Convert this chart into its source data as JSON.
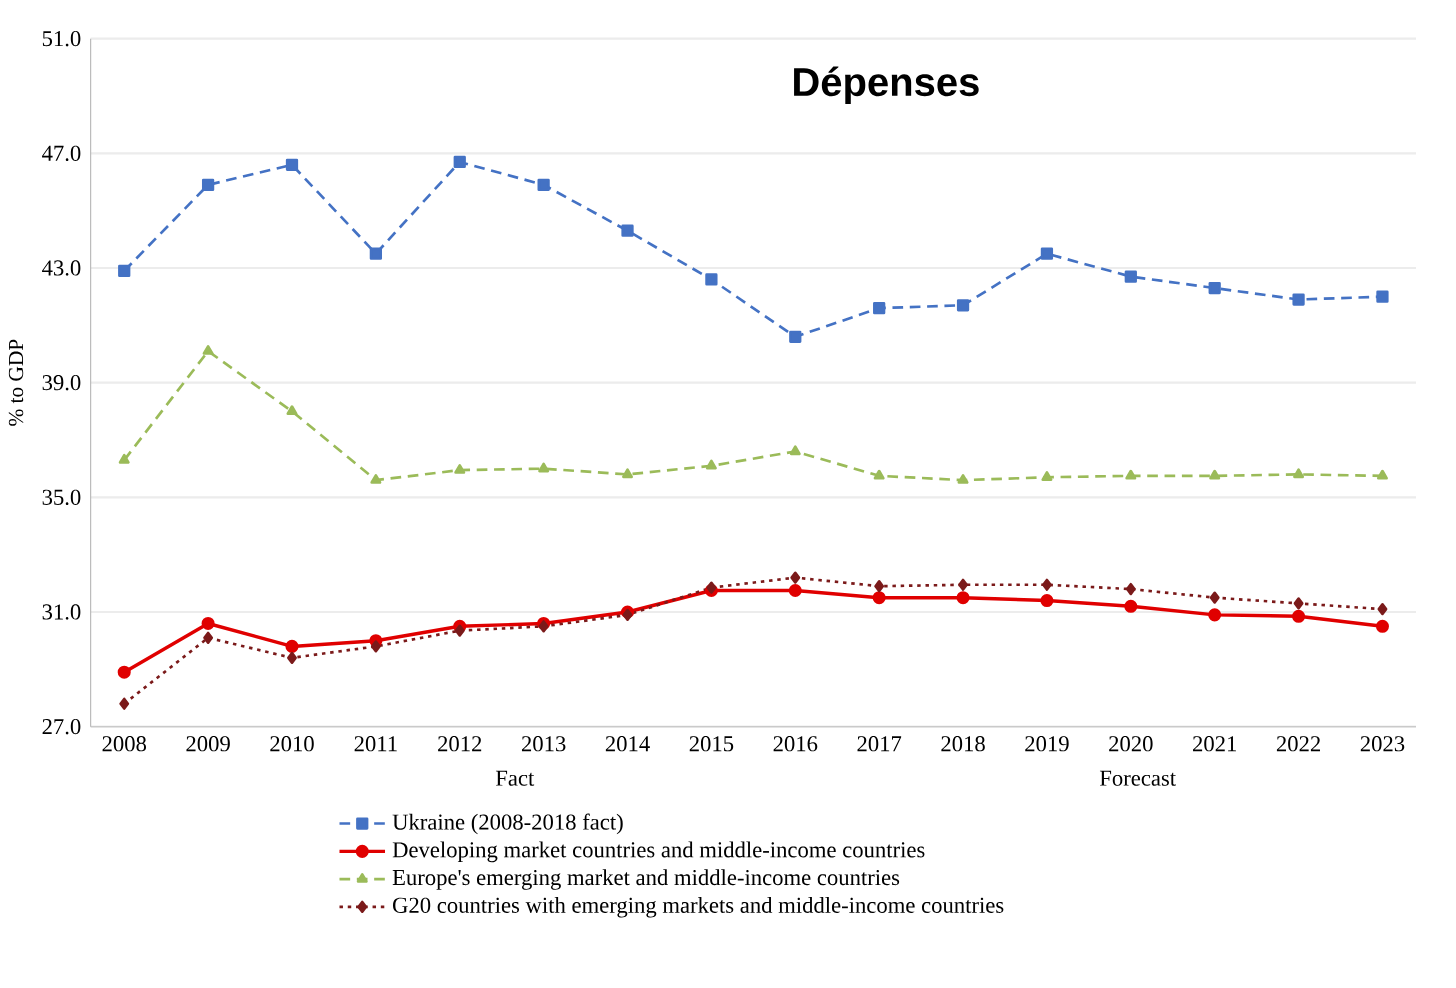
{
  "chart_data": {
    "type": "line",
    "title": "Dépenses",
    "ylabel": "% to GDP",
    "categories": [
      "2008",
      "2009",
      "2010",
      "2011",
      "2012",
      "2013",
      "2014",
      "2015",
      "2016",
      "2017",
      "2018",
      "2019",
      "2020",
      "2021",
      "2022",
      "2023"
    ],
    "series": [
      {
        "name": "Ukraine (2008-2018 fact)",
        "color": "#4472c4",
        "marker": "square",
        "line_style": "dashed",
        "values": [
          42.9,
          45.9,
          46.6,
          43.5,
          46.7,
          45.9,
          44.3,
          42.6,
          40.6,
          41.6,
          41.7,
          43.5,
          42.7,
          42.3,
          41.9,
          42.0
        ]
      },
      {
        "name": "Developing market countries and middle-income countries",
        "color": "#e00000",
        "marker": "circle",
        "line_style": "solid",
        "values": [
          28.9,
          30.6,
          29.8,
          30.0,
          30.5,
          30.6,
          31.0,
          31.75,
          31.75,
          31.5,
          31.5,
          31.4,
          31.2,
          30.9,
          30.85,
          30.5
        ]
      },
      {
        "name": "Europe's emerging market and middle-income countries",
        "color": "#9bbb59",
        "marker": "triangle",
        "line_style": "dashed",
        "values": [
          36.3,
          40.1,
          38.0,
          35.6,
          35.95,
          36.0,
          35.8,
          36.1,
          36.6,
          35.75,
          35.6,
          35.7,
          35.75,
          35.75,
          35.8,
          35.75
        ]
      },
      {
        "name": "G20 countries with emerging markets and middle-income countries",
        "color": "#7b1a1a",
        "marker": "diamond",
        "line_style": "dotted",
        "values": [
          27.8,
          30.1,
          29.4,
          29.8,
          30.35,
          30.5,
          30.9,
          31.85,
          32.2,
          31.9,
          31.95,
          31.95,
          31.8,
          31.5,
          31.3,
          31.1
        ]
      }
    ],
    "ylim": [
      27,
      51
    ],
    "yticks": [
      {
        "value": 27,
        "label": "27.0"
      },
      {
        "value": 31,
        "label": "31.0"
      },
      {
        "value": 35,
        "label": "35.0"
      },
      {
        "value": 39,
        "label": "39.0"
      },
      {
        "value": 43,
        "label": "43.0"
      },
      {
        "value": 47,
        "label": "47.0"
      },
      {
        "value": 51,
        "label": "51.0"
      }
    ],
    "grid": "y",
    "legend": "bottom",
    "annotations": [
      "Fact",
      "Forecast"
    ]
  }
}
